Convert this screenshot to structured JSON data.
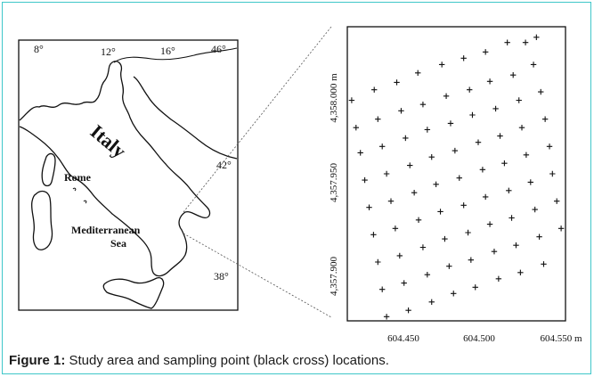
{
  "map": {
    "top_labels": [
      "8°",
      "12°",
      "16°",
      "46°"
    ],
    "lat_labels": [
      "42°",
      "38°"
    ],
    "country_label": "Italy",
    "city_label": "Rome",
    "sea_label_line1": "Mediterranean",
    "sea_label_line2": "Sea"
  },
  "grid_plot": {
    "y_ticks": [
      "4,358.000 m",
      "4,357.950",
      "4,357.900"
    ],
    "x_ticks": [
      "604.450",
      "604.500",
      "604.550 m"
    ],
    "marker": "black-cross",
    "xlim": [
      604.4,
      604.55
    ],
    "ylim": [
      4357.875,
      4358.015
    ],
    "points": [
      {
        "x": 604.53,
        "y": 4358.01
      },
      {
        "x": 604.5225,
        "y": 4358.0075
      },
      {
        "x": 604.51,
        "y": 4358.0075
      },
      {
        "x": 604.495,
        "y": 4358.003
      },
      {
        "x": 604.48,
        "y": 4358.0
      },
      {
        "x": 604.465,
        "y": 4357.997
      },
      {
        "x": 604.4485,
        "y": 4357.993
      },
      {
        "x": 604.434,
        "y": 4357.9885
      },
      {
        "x": 604.4185,
        "y": 4357.985
      },
      {
        "x": 604.403,
        "y": 4357.98
      },
      {
        "x": 604.528,
        "y": 4357.997
      },
      {
        "x": 604.514,
        "y": 4357.992
      },
      {
        "x": 604.498,
        "y": 4357.989
      },
      {
        "x": 604.484,
        "y": 4357.985
      },
      {
        "x": 604.468,
        "y": 4357.982
      },
      {
        "x": 604.452,
        "y": 4357.978
      },
      {
        "x": 604.437,
        "y": 4357.975
      },
      {
        "x": 604.421,
        "y": 4357.971
      },
      {
        "x": 604.406,
        "y": 4357.967
      },
      {
        "x": 604.533,
        "y": 4357.984
      },
      {
        "x": 604.518,
        "y": 4357.98
      },
      {
        "x": 604.502,
        "y": 4357.976
      },
      {
        "x": 604.486,
        "y": 4357.973
      },
      {
        "x": 604.471,
        "y": 4357.969
      },
      {
        "x": 604.455,
        "y": 4357.966
      },
      {
        "x": 604.44,
        "y": 4357.962
      },
      {
        "x": 604.424,
        "y": 4357.958
      },
      {
        "x": 604.409,
        "y": 4357.955
      },
      {
        "x": 604.536,
        "y": 4357.971
      },
      {
        "x": 604.52,
        "y": 4357.967
      },
      {
        "x": 604.505,
        "y": 4357.963
      },
      {
        "x": 604.49,
        "y": 4357.96
      },
      {
        "x": 604.474,
        "y": 4357.956
      },
      {
        "x": 604.458,
        "y": 4357.953
      },
      {
        "x": 604.443,
        "y": 4357.949
      },
      {
        "x": 604.427,
        "y": 4357.945
      },
      {
        "x": 604.412,
        "y": 4357.942
      },
      {
        "x": 604.539,
        "y": 4357.958
      },
      {
        "x": 604.523,
        "y": 4357.954
      },
      {
        "x": 604.508,
        "y": 4357.95
      },
      {
        "x": 604.493,
        "y": 4357.947
      },
      {
        "x": 604.477,
        "y": 4357.943
      },
      {
        "x": 604.461,
        "y": 4357.94
      },
      {
        "x": 604.446,
        "y": 4357.936
      },
      {
        "x": 604.43,
        "y": 4357.932
      },
      {
        "x": 604.415,
        "y": 4357.929
      },
      {
        "x": 604.541,
        "y": 4357.945
      },
      {
        "x": 604.526,
        "y": 4357.941
      },
      {
        "x": 604.511,
        "y": 4357.937
      },
      {
        "x": 604.495,
        "y": 4357.934
      },
      {
        "x": 604.48,
        "y": 4357.93
      },
      {
        "x": 604.464,
        "y": 4357.927
      },
      {
        "x": 604.449,
        "y": 4357.923
      },
      {
        "x": 604.433,
        "y": 4357.919
      },
      {
        "x": 604.418,
        "y": 4357.916
      },
      {
        "x": 604.544,
        "y": 4357.932
      },
      {
        "x": 604.529,
        "y": 4357.928
      },
      {
        "x": 604.513,
        "y": 4357.924
      },
      {
        "x": 604.498,
        "y": 4357.921
      },
      {
        "x": 604.483,
        "y": 4357.917
      },
      {
        "x": 604.467,
        "y": 4357.914
      },
      {
        "x": 604.452,
        "y": 4357.91
      },
      {
        "x": 604.436,
        "y": 4357.906
      },
      {
        "x": 604.421,
        "y": 4357.903
      },
      {
        "x": 604.547,
        "y": 4357.919
      },
      {
        "x": 604.532,
        "y": 4357.915
      },
      {
        "x": 604.516,
        "y": 4357.911
      },
      {
        "x": 604.501,
        "y": 4357.908
      },
      {
        "x": 604.485,
        "y": 4357.904
      },
      {
        "x": 604.47,
        "y": 4357.901
      },
      {
        "x": 604.455,
        "y": 4357.897
      },
      {
        "x": 604.439,
        "y": 4357.893
      },
      {
        "x": 604.424,
        "y": 4357.89
      },
      {
        "x": 604.535,
        "y": 4357.902
      },
      {
        "x": 604.519,
        "y": 4357.898
      },
      {
        "x": 604.504,
        "y": 4357.895
      },
      {
        "x": 604.488,
        "y": 4357.891
      },
      {
        "x": 604.473,
        "y": 4357.888
      },
      {
        "x": 604.458,
        "y": 4357.884
      },
      {
        "x": 604.442,
        "y": 4357.88
      },
      {
        "x": 604.427,
        "y": 4357.877
      }
    ]
  },
  "caption": {
    "label": "Figure 1:",
    "text": " Study area and sampling point (black cross) locations."
  }
}
